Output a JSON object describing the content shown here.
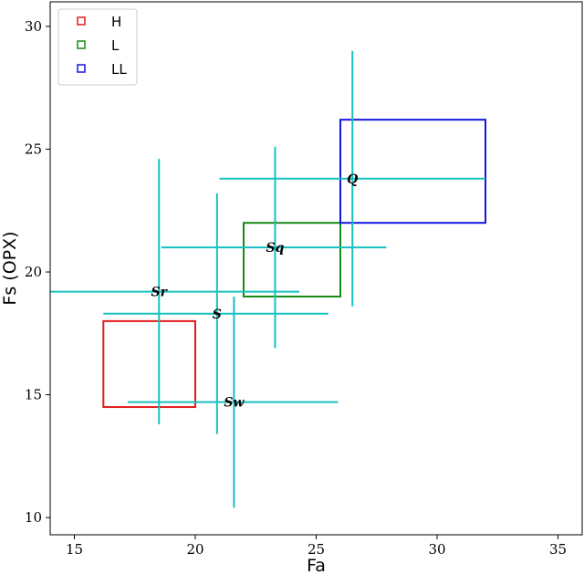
{
  "chart_data": {
    "type": "scatter",
    "xlabel": "Fa",
    "ylabel": "Fs (OPX)",
    "xlim": [
      14,
      36
    ],
    "ylim": [
      9.3,
      31
    ],
    "xticks": [
      15,
      20,
      25,
      30,
      35
    ],
    "yticks": [
      10,
      15,
      20,
      25,
      30
    ],
    "grid": false,
    "legend_position": "top-left",
    "regions": [
      {
        "name": "H",
        "color": "#e31a1c",
        "x": [
          16.2,
          20.0
        ],
        "y": [
          14.5,
          18.0
        ]
      },
      {
        "name": "L",
        "color": "#158a15",
        "x": [
          22.0,
          26.0
        ],
        "y": [
          19.0,
          22.0
        ]
      },
      {
        "name": "LL",
        "color": "#1515e0",
        "x": [
          26.0,
          32.0
        ],
        "y": [
          22.0,
          26.2
        ]
      }
    ],
    "error_color": "#17c0c0",
    "points": [
      {
        "label": "Sr",
        "x": 18.5,
        "y": 19.2,
        "x_range": [
          14.0,
          24.3
        ],
        "y_range": [
          13.8,
          24.6
        ]
      },
      {
        "label": "S",
        "x": 20.9,
        "y": 18.3,
        "x_range": [
          16.2,
          25.5
        ],
        "y_range": [
          13.4,
          23.2
        ]
      },
      {
        "label": "Sw",
        "x": 21.6,
        "y": 14.7,
        "x_range": [
          17.2,
          25.9
        ],
        "y_range": [
          10.4,
          19.0
        ]
      },
      {
        "label": "Sq",
        "x": 23.3,
        "y": 21.0,
        "x_range": [
          18.6,
          27.9
        ],
        "y_range": [
          16.9,
          25.1
        ]
      },
      {
        "label": "Q",
        "x": 26.5,
        "y": 23.8,
        "x_range": [
          21.0,
          32.0
        ],
        "y_range": [
          18.6,
          29.0
        ]
      }
    ]
  }
}
